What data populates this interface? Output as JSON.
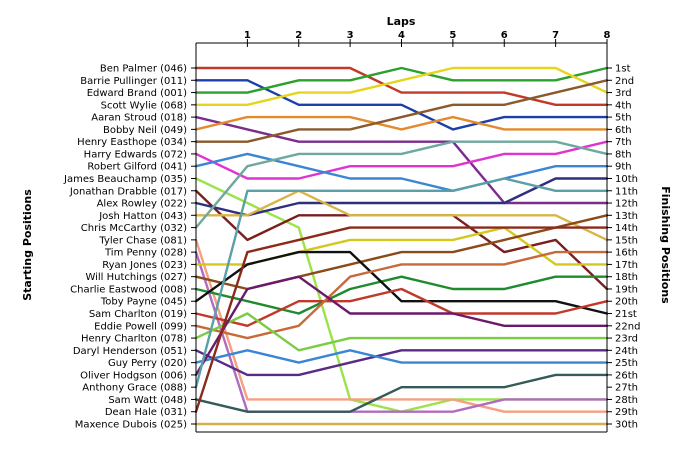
{
  "chart_data": {
    "type": "line",
    "title": "",
    "xlabel": "Laps",
    "ylabel_left": "Starting Positions",
    "ylabel_right": "Finishing Positions",
    "x": [
      0,
      1,
      2,
      3,
      4,
      5,
      6,
      7,
      8
    ],
    "x_tick_labels": [
      "1",
      "2",
      "3",
      "4",
      "5",
      "6",
      "7",
      "8"
    ],
    "y_range": [
      1,
      30
    ],
    "y_inverted": true,
    "grid": false,
    "starting_grid": [
      "Ben Palmer (046)",
      "Barrie Pullinger (011)",
      "Edward Brand (001)",
      "Scott Wylie (068)",
      "Aaran Stroud (018)",
      "Bobby Neil (049)",
      "Henry Easthope (034)",
      "Harry Edwards (072)",
      "Robert Gilford (041)",
      "James Beauchamp (035)",
      "Jonathan Drabble (017)",
      "Alex Rowley (022)",
      "Josh Hatton (043)",
      "Chris McCarthy (032)",
      "Tyler Chase (081)",
      "Tim Penny (028)",
      "Ryan Jones (023)",
      "Will Hutchings (027)",
      "Charlie Eastwood (008)",
      "Toby Payne (045)",
      "Sam Charlton (019)",
      "Eddie Powell (099)",
      "Henry Charlton (078)",
      "Daryl Henderson (051)",
      "Guy Perry (020)",
      "Oliver Hodgson (006)",
      "Anthony Grace (088)",
      "Sam Watt (048)",
      "Dean Hale (031)",
      "Maxence Dubois (025)"
    ],
    "finishing_positions": [
      "1st",
      "2nd",
      "3rd",
      "4th",
      "5th",
      "6th",
      "7th",
      "8th",
      "9th",
      "10th",
      "11th",
      "12th",
      "13th",
      "14th",
      "15th",
      "16th",
      "17th",
      "18th",
      "19th",
      "20th",
      "21st",
      "22nd",
      "23rd",
      "24th",
      "25th",
      "26th",
      "27th",
      "28th",
      "29th",
      "30th"
    ],
    "series": [
      {
        "color": "#c0392b",
        "values": [
          1,
          1,
          1,
          1,
          3,
          3,
          3,
          4,
          4
        ]
      },
      {
        "color": "#1f3fa8",
        "values": [
          2,
          2,
          4,
          4,
          4,
          6,
          5,
          5,
          5
        ]
      },
      {
        "color": "#2ca02c",
        "values": [
          3,
          3,
          2,
          2,
          1,
          2,
          2,
          2,
          1
        ]
      },
      {
        "color": "#e6d51e",
        "values": [
          4,
          4,
          3,
          3,
          2,
          1,
          1,
          1,
          3
        ]
      },
      {
        "color": "#7b2d8e",
        "values": [
          5,
          6,
          7,
          7,
          7,
          7,
          12,
          12,
          12
        ]
      },
      {
        "color": "#e38a2e",
        "values": [
          6,
          5,
          5,
          5,
          6,
          5,
          6,
          6,
          6
        ]
      },
      {
        "color": "#8b5a2b",
        "values": [
          7,
          7,
          6,
          6,
          5,
          4,
          4,
          3,
          2
        ]
      },
      {
        "color": "#e034d0",
        "values": [
          8,
          10,
          10,
          9,
          9,
          9,
          8,
          8,
          7
        ]
      },
      {
        "color": "#3a86d4",
        "values": [
          9,
          8,
          9,
          10,
          10,
          11,
          10,
          9,
          9
        ]
      },
      {
        "color": "#9be34a",
        "values": [
          10,
          12,
          14,
          28,
          29,
          28,
          28,
          28,
          28
        ]
      },
      {
        "color": "#7a1f1f",
        "values": [
          11,
          15,
          13,
          13,
          13,
          13,
          16,
          15,
          19
        ]
      },
      {
        "color": "#2f2f80",
        "values": [
          12,
          13,
          12,
          12,
          12,
          12,
          12,
          10,
          10
        ]
      },
      {
        "color": "#d9b44a",
        "values": [
          13,
          13,
          11,
          13,
          13,
          13,
          13,
          13,
          15
        ]
      },
      {
        "color": "#6fa8a0",
        "values": [
          14,
          9,
          8,
          8,
          8,
          7,
          7,
          7,
          8
        ]
      },
      {
        "color": "#f4a081",
        "values": [
          15,
          28,
          28,
          28,
          28,
          28,
          29,
          29,
          29
        ]
      },
      {
        "color": "#b06cc0",
        "values": [
          16,
          29,
          29,
          29,
          29,
          29,
          28,
          28,
          28
        ]
      },
      {
        "color": "#d4c81e",
        "values": [
          17,
          17,
          16,
          15,
          15,
          15,
          14,
          17,
          17
        ]
      },
      {
        "color": "#8b4a1a",
        "values": [
          18,
          19,
          18,
          17,
          16,
          16,
          15,
          14,
          13
        ]
      },
      {
        "color": "#1f8a2e",
        "values": [
          19,
          20,
          21,
          19,
          18,
          19,
          19,
          18,
          18
        ]
      },
      {
        "color": "#111111",
        "values": [
          20,
          17,
          16,
          16,
          20,
          20,
          20,
          20,
          21
        ]
      },
      {
        "color": "#c0392b",
        "values": [
          21,
          22,
          20,
          20,
          19,
          21,
          21,
          21,
          20
        ]
      },
      {
        "color": "#c8693a",
        "values": [
          22,
          23,
          22,
          18,
          17,
          17,
          17,
          16,
          16
        ]
      },
      {
        "color": "#7acc44",
        "values": [
          23,
          21,
          24,
          23,
          23,
          23,
          23,
          23,
          23
        ]
      },
      {
        "color": "#5b2a86",
        "values": [
          24,
          26,
          26,
          25,
          24,
          24,
          24,
          24,
          24
        ]
      },
      {
        "color": "#3a86d4",
        "values": [
          25,
          24,
          25,
          24,
          25,
          25,
          25,
          25,
          25
        ]
      },
      {
        "color": "#6b1a6b",
        "values": [
          26,
          19,
          18,
          21,
          21,
          21,
          22,
          22,
          22
        ]
      },
      {
        "color": "#5aa0a6",
        "values": [
          27,
          11,
          11,
          11,
          11,
          11,
          10,
          11,
          11
        ]
      },
      {
        "color": "#355a5a",
        "values": [
          28,
          29,
          29,
          29,
          27,
          27,
          27,
          26,
          26
        ]
      },
      {
        "color": "#8b2a1a",
        "values": [
          29,
          16,
          15,
          14,
          14,
          14,
          14,
          14,
          14
        ]
      },
      {
        "color": "#d4b04a",
        "values": [
          30,
          30,
          30,
          30,
          30,
          30,
          30,
          30,
          30
        ]
      }
    ]
  }
}
